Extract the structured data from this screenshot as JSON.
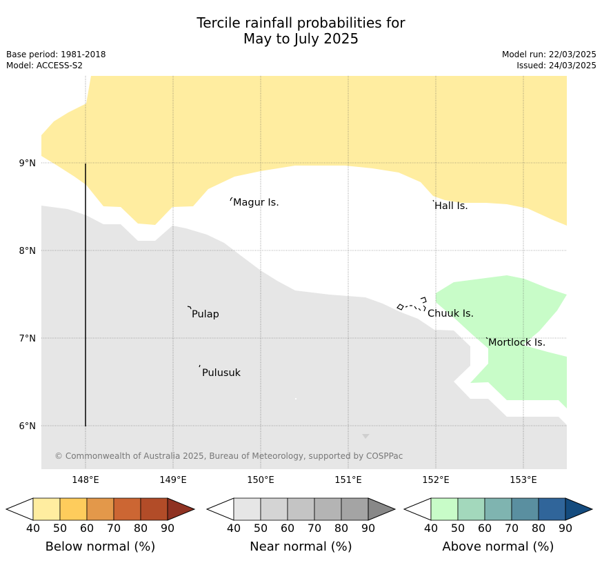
{
  "title_line1": "Tercile rainfall probabilities for",
  "title_line2": "May to July 2025",
  "base_period": "Base period: 1981-2018",
  "model": "Model: ACCESS-S2",
  "model_run": "Model run: 22/03/2025",
  "issued": "Issued: 24/03/2025",
  "copyright": "© Commonwealth of Australia 2025, Bureau of Meteorology, supported by COSPPac",
  "lat_labels": [
    "9°N",
    "8°N",
    "7°N",
    "6°N"
  ],
  "lon_labels": [
    "148°E",
    "149°E",
    "150°E",
    "151°E",
    "152°E",
    "153°E"
  ],
  "places": {
    "magur": "Magur Is.",
    "hall": "Hall Is.",
    "pulap": "Pulap",
    "chuuk": "Chuuk Is.",
    "mortlock": "Mortlock Is.",
    "pulusuk": "Pulusuk"
  },
  "colorbars": [
    {
      "title": "Below normal (%)",
      "ticks": [
        "40",
        "50",
        "60",
        "70",
        "80",
        "90"
      ],
      "colors": [
        "#ffffff",
        "#ffeda0",
        "#fecc5c",
        "#e3984a",
        "#cc6633",
        "#b24c28",
        "#8f3222"
      ]
    },
    {
      "title": "Near normal (%)",
      "ticks": [
        "40",
        "50",
        "60",
        "70",
        "80",
        "90"
      ],
      "colors": [
        "#ffffff",
        "#e6e6e6",
        "#d4d4d4",
        "#c4c4c4",
        "#b4b4b4",
        "#a4a4a4",
        "#888888"
      ]
    },
    {
      "title": "Above normal (%)",
      "ticks": [
        "40",
        "50",
        "60",
        "70",
        "80",
        "90"
      ],
      "colors": [
        "#ffffff",
        "#c8fcc8",
        "#a3d8bc",
        "#7fb4b0",
        "#5a8fa0",
        "#30659a",
        "#144b7e"
      ]
    }
  ],
  "legend_colors": {
    "below_50": "#ffeda0",
    "near_50": "#e6e6e6",
    "above_50": "#c8fcc8"
  }
}
